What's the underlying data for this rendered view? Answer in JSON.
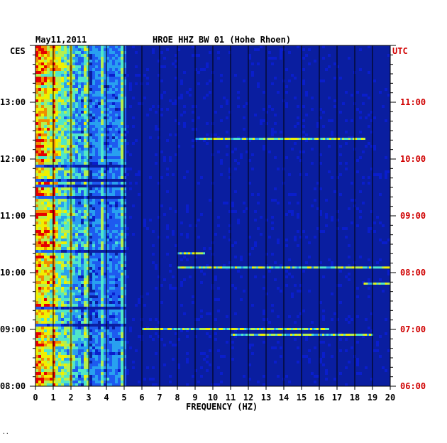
{
  "header": {
    "date": "May11,2011",
    "station": "HROE HHZ BW 01 (Hohe Rhoen)"
  },
  "axes": {
    "left_tz": "CES",
    "right_tz": "UTC",
    "xlabel": "FREQUENCY (HZ)"
  },
  "chart_data": {
    "type": "heatmap",
    "title": "HROE HHZ BW 01 (Hohe Rhoen)",
    "date": "May11,2011",
    "xlabel": "FREQUENCY (HZ)",
    "x_ticks": [
      "0",
      "1",
      "2",
      "3",
      "4",
      "5",
      "6",
      "7",
      "8",
      "9",
      "10",
      "11",
      "12",
      "13",
      "14",
      "15",
      "16",
      "17",
      "18",
      "19",
      "20"
    ],
    "xlim": [
      0,
      20
    ],
    "y_left_label": "CES",
    "y_right_label": "UTC",
    "y_left_ticks": [
      "13:00",
      "12:00",
      "11:00",
      "10:00",
      "09:00",
      "08:00"
    ],
    "y_right_ticks": [
      "11:00",
      "10:00",
      "09:00",
      "08:00",
      "07:00",
      "06:00"
    ],
    "y_tick_hours_utc": [
      11,
      10,
      9,
      8,
      7,
      6
    ],
    "ylim_utc_hours": [
      6,
      12
    ],
    "grid": true,
    "colormap": [
      "#00008c",
      "#0a1ecc",
      "#1e5af0",
      "#28a0f0",
      "#50e6c8",
      "#b4f050",
      "#f0f000",
      "#f08c00",
      "#e60000"
    ],
    "background_color": "#0a1ea0",
    "tonal_lines_hz": [
      1.0,
      2.0,
      2.9,
      3.75,
      4.9
    ],
    "events": [
      {
        "utc": "10:21",
        "f_start_hz": 9.0,
        "f_end_hz": 18.5
      },
      {
        "utc": "08:05",
        "f_start_hz": 8.0,
        "f_end_hz": 20.0
      },
      {
        "utc": "07:48",
        "f_start_hz": 18.5,
        "f_end_hz": 20.0
      },
      {
        "utc": "07:00",
        "f_start_hz": 6.0,
        "f_end_hz": 16.5
      },
      {
        "utc": "06:54",
        "f_start_hz": 11.0,
        "f_end_hz": 19.0
      },
      {
        "utc": "08:20",
        "f_start_hz": 8.0,
        "f_end_hz": 9.5
      }
    ]
  },
  "corner_mark": "··"
}
